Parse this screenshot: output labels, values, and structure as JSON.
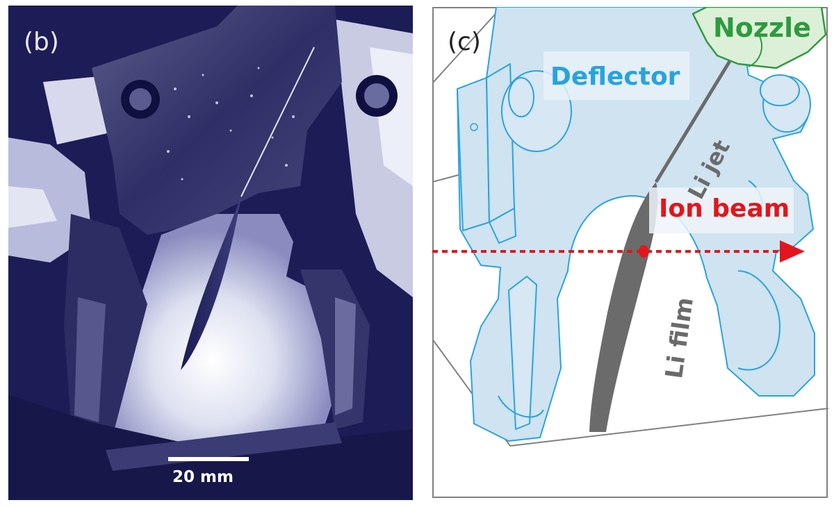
{
  "panels": [
    {
      "letter": "(b)",
      "scale_bar_label": "20 mm"
    },
    {
      "letter": "(c)",
      "labels": {
        "nozzle": "Nozzle",
        "deflector": "Deflector",
        "li_jet": "Li jet",
        "ion_beam": "Ion beam",
        "li_film": "Li film"
      }
    }
  ],
  "colors": {
    "deflector_outline": "#29a3dd",
    "deflector_fill": "#cfe3f1",
    "nozzle": "#2e9a3e",
    "nozzle_fill": "#dcf0d8",
    "li_film": "#6b6b6b",
    "ion_beam": "#e2161c",
    "frame": "#808080"
  }
}
